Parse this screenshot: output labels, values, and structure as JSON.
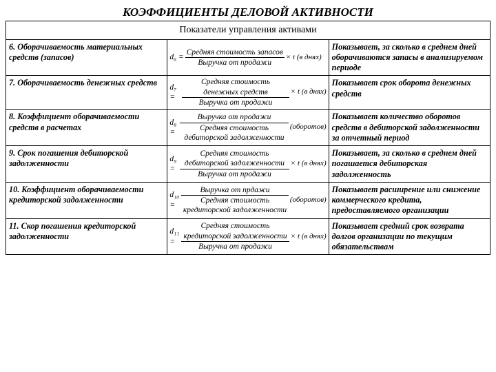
{
  "title": "КОЭФФИЦИЕНТЫ ДЕЛОВОЙ АКТИВНОСТИ",
  "subtitle": "Показатели управления активами",
  "rows": [
    {
      "name": "6. Оборачиваемость материальных средств (запасов)",
      "d": "d₆ =",
      "num": "Средняя стоимость запасов",
      "den": "Выручка от продажи",
      "tail": "× t   (в днях)",
      "desc": "Показывает, за сколько в среднем дней оборачиваются запасы в анализируемом периоде"
    },
    {
      "name": "7. Оборачиваемость денежных средств",
      "d": "d₇ =",
      "num": "Средняя стоимость денежных средств",
      "den": "Выручка от продажи",
      "tail": "× t   (в днях)",
      "desc": "Показывает срок оборота денежных средств"
    },
    {
      "name": "8. Коэффициент оборачиваемости средств в расчетах",
      "d": "d₈ =",
      "num": "Выручка от продажи",
      "den": "Средняя стоимость дебиторской задолженности",
      "tail": "(оборотов)",
      "desc": "Показывает количество оборотов средств в дебиторской задолженности за отчетный период"
    },
    {
      "name": "9. Срок погашения дебиторской задолженности",
      "d": "d₉ =",
      "num": "Средняя стоимость дебиторской задолженности",
      "den": "Выручка от продажи",
      "tail": "× t   (в днях)",
      "desc": "Показывает, за сколько в среднем дней погашается дебиторская задолженность"
    },
    {
      "name": "10. Коэффициент оборачиваемости кредиторской задолженности",
      "d": "d₁₀ =",
      "num": "Выручка от прдажи",
      "den": "Средняя стоимость кредиторской задолженности",
      "tail": "(оборотов)",
      "desc": "Показывает расширение или снижение коммерческого кредита, предоставляемого организации"
    },
    {
      "name": "11. Скор погашения кредиторской задолженности",
      "d": "d₁₁ =",
      "num": "Средняя стоимость кредиторской задолженности",
      "den": "Выручка от продажи",
      "tail": "× t   (в днях)",
      "desc": "Показывает средний срок возврата долгов организации по текущим обязательствам"
    }
  ]
}
